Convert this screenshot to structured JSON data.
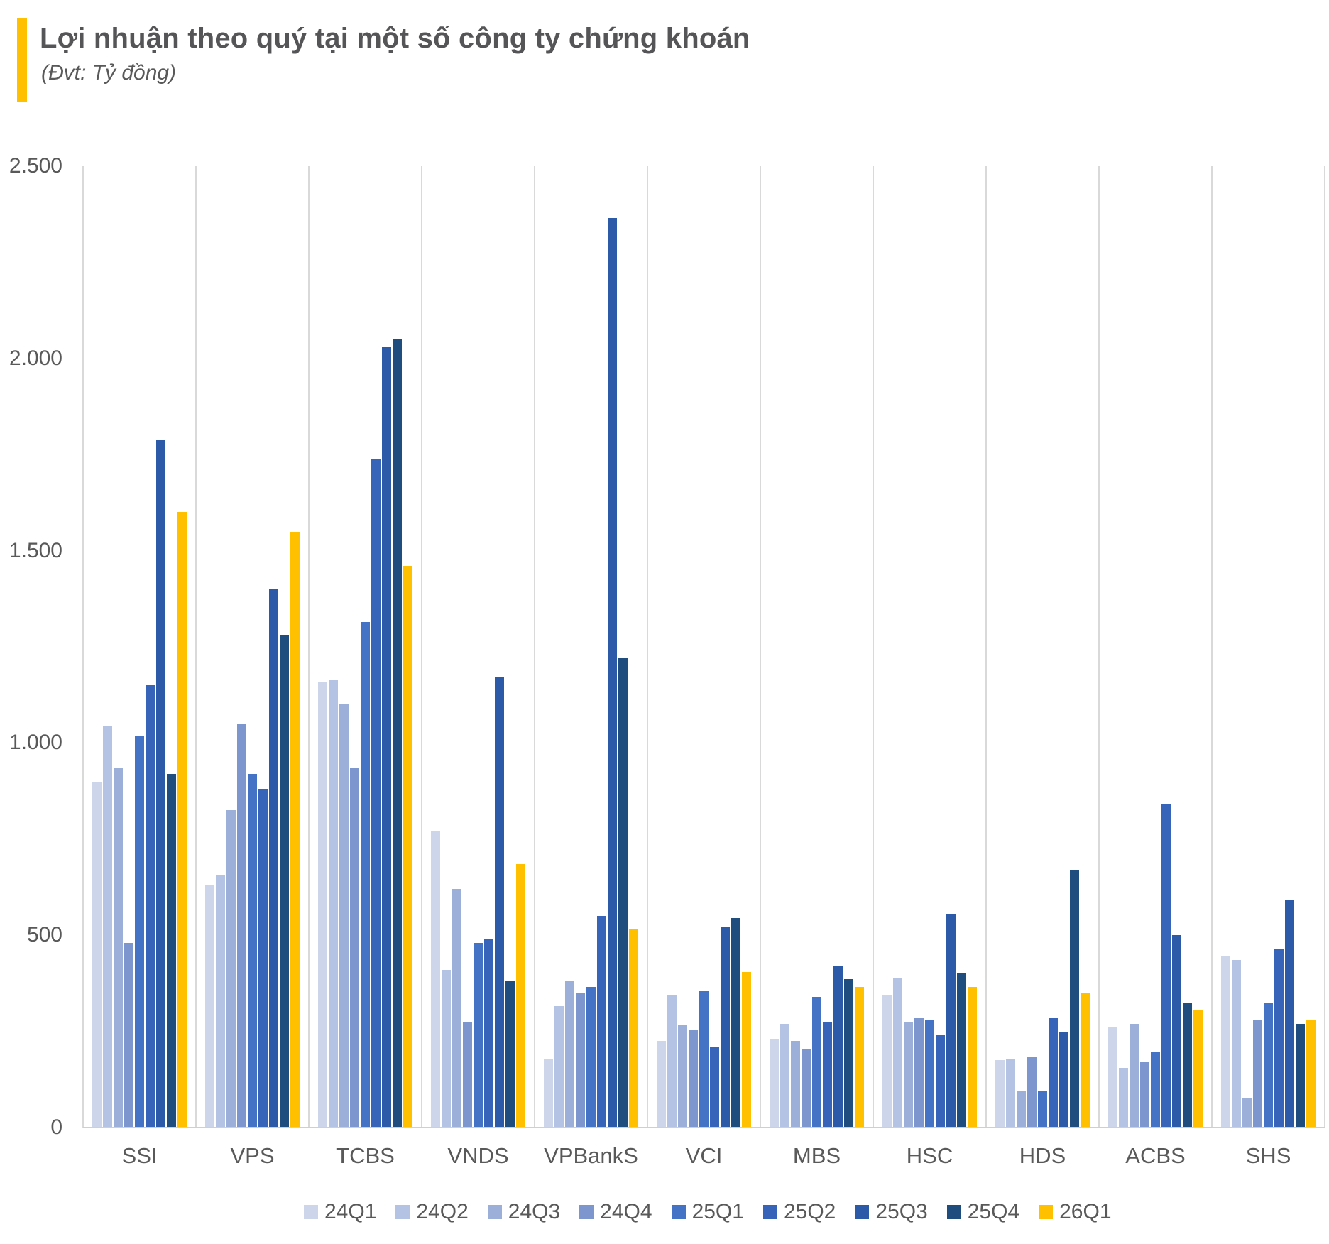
{
  "header": {
    "title": "Lợi nhuận theo quý tại một số công ty chứng khoán",
    "subtitle": "(Đvt: Tỷ đồng)"
  },
  "accent_color": "#ffc000",
  "chart_data": {
    "type": "bar",
    "title": "Lợi nhuận theo quý tại một số công ty chứng khoán",
    "unit_label": "(Đvt: Tỷ đồng)",
    "xlabel": "",
    "ylabel": "",
    "ylim": [
      0,
      2500
    ],
    "yticks": [
      0,
      500,
      1000,
      1500,
      2000,
      2500
    ],
    "ytick_labels": [
      "0",
      "500",
      "1.000",
      "1.500",
      "2.000",
      "2.500"
    ],
    "grid": "vertical-dividers-only",
    "legend_position": "bottom",
    "categories": [
      "SSI",
      "VPS",
      "TCBS",
      "VNDS",
      "VPBankS",
      "VCI",
      "MBS",
      "HSC",
      "HDS",
      "ACBS",
      "SHS"
    ],
    "series": [
      {
        "name": "24Q1",
        "color": "#ccd5ea",
        "values": [
          900,
          630,
          1160,
          770,
          180,
          225,
          230,
          345,
          175,
          260,
          445
        ]
      },
      {
        "name": "24Q2",
        "color": "#b4c2e3",
        "values": [
          1045,
          655,
          1165,
          410,
          315,
          345,
          270,
          390,
          180,
          155,
          435
        ]
      },
      {
        "name": "24Q3",
        "color": "#9bafd9",
        "values": [
          935,
          825,
          1100,
          620,
          380,
          265,
          225,
          275,
          95,
          270,
          75
        ]
      },
      {
        "name": "24Q4",
        "color": "#7d97ce",
        "values": [
          480,
          1050,
          935,
          275,
          350,
          255,
          205,
          285,
          185,
          170,
          280
        ]
      },
      {
        "name": "25Q1",
        "color": "#4472c4",
        "values": [
          1020,
          920,
          1315,
          480,
          365,
          355,
          340,
          280,
          95,
          195,
          325
        ]
      },
      {
        "name": "25Q2",
        "color": "#3764b9",
        "values": [
          1150,
          880,
          1740,
          490,
          550,
          210,
          275,
          240,
          285,
          840,
          465
        ]
      },
      {
        "name": "25Q3",
        "color": "#2c5aa9",
        "values": [
          1790,
          1400,
          2030,
          1170,
          2365,
          520,
          420,
          555,
          250,
          500,
          590
        ]
      },
      {
        "name": "25Q4",
        "color": "#1f4e7e",
        "values": [
          920,
          1280,
          2050,
          380,
          1220,
          545,
          385,
          400,
          670,
          325,
          270
        ]
      },
      {
        "name": "26Q1",
        "color": "#ffc000",
        "values": [
          1600,
          1550,
          1460,
          685,
          515,
          405,
          365,
          365,
          350,
          305,
          280
        ]
      }
    ]
  },
  "layout_note": "values in billion VND read from axis; baseline 0, top gridline 2.500"
}
